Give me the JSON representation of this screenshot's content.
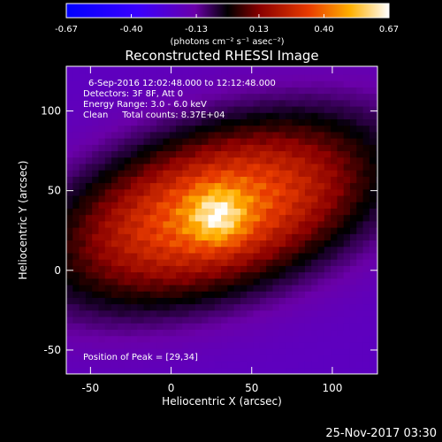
{
  "chart_data": {
    "type": "heatmap",
    "title": "Reconstructed RHESSI Image",
    "xlabel": "Heliocentric X (arcsec)",
    "ylabel": "Heliocentric Y (arcsec)",
    "xlim": [
      -65,
      128
    ],
    "ylim": [
      -65,
      128
    ],
    "x_ticks": [
      -50,
      0,
      50,
      100
    ],
    "y_ticks": [
      -50,
      0,
      50,
      100
    ],
    "colorbar": {
      "label": "(photons cm⁻² s⁻¹ asec⁻²)",
      "range": [
        -0.67,
        0.67
      ],
      "ticks": [
        "-0.67",
        "-0.40",
        "-0.13",
        "0.13",
        "0.40",
        "0.67"
      ]
    },
    "annotations": [
      "6-Sep-2016 12:02:48.000 to 12:12:48.000",
      "Detectors: 3F 8F, Att 0",
      "Energy Range: 3.0 - 6.0 keV",
      "Clean     Total counts: 8.37E+04"
    ],
    "peak_label": "Position of Peak = [29,34]",
    "peak": [
      29,
      34
    ],
    "source": {
      "center": [
        28,
        38
      ],
      "major_sigma": 62,
      "minor_sigma": 30,
      "angle_deg": 18,
      "peak_value": 0.67,
      "floor_value": -0.2
    }
  },
  "footer_date": "25-Nov-2017 03:30"
}
